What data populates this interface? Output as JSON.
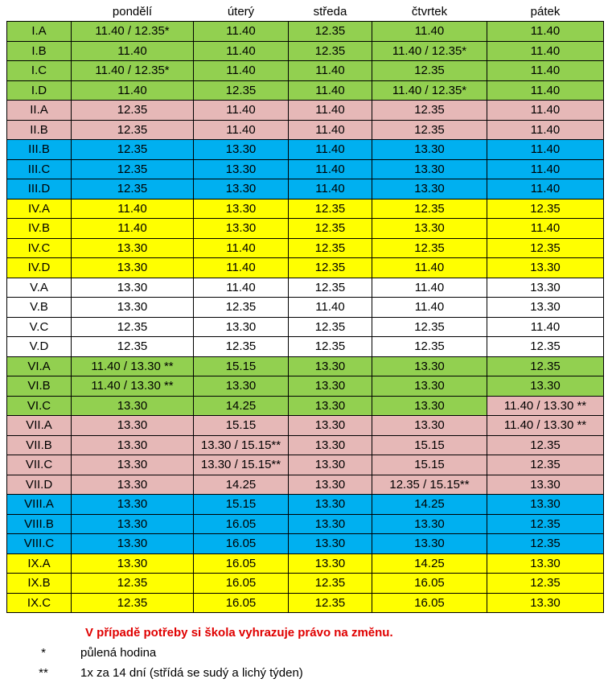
{
  "days": [
    "pondělí",
    "úterý",
    "středa",
    "čtvrtek",
    "pátek"
  ],
  "rows": [
    {
      "cls": "I.A",
      "times": [
        "11.40 / 12.35*",
        "11.40",
        "12.35",
        "11.40",
        "11.40"
      ],
      "color": "#92d050"
    },
    {
      "cls": "I.B",
      "times": [
        "11.40",
        "11.40",
        "12.35",
        "11.40 / 12.35*",
        "11.40"
      ],
      "color": "#92d050"
    },
    {
      "cls": "I.C",
      "times": [
        "11.40 / 12.35*",
        "11.40",
        "11.40",
        "12.35",
        "11.40"
      ],
      "color": "#92d050"
    },
    {
      "cls": "I.D",
      "times": [
        "11.40",
        "12.35",
        "11.40",
        "11.40 / 12.35*",
        "11.40"
      ],
      "color": "#92d050"
    },
    {
      "cls": "II.A",
      "times": [
        "12.35",
        "11.40",
        "11.40",
        "12.35",
        "11.40"
      ],
      "color": "#e6b8b7"
    },
    {
      "cls": "II.B",
      "times": [
        "12.35",
        "11.40",
        "11.40",
        "12.35",
        "11.40"
      ],
      "color": "#e6b8b7"
    },
    {
      "cls": "III.B",
      "times": [
        "12.35",
        "13.30",
        "11.40",
        "13.30",
        "11.40"
      ],
      "color": "#00b0f0"
    },
    {
      "cls": "III.C",
      "times": [
        "12.35",
        "13.30",
        "11.40",
        "13.30",
        "11.40"
      ],
      "color": "#00b0f0"
    },
    {
      "cls": "III.D",
      "times": [
        "12.35",
        "13.30",
        "11.40",
        "13.30",
        "11.40"
      ],
      "color": "#00b0f0"
    },
    {
      "cls": "IV.A",
      "times": [
        "11.40",
        "13.30",
        "12.35",
        "12.35",
        "12.35"
      ],
      "color": "#ffff00"
    },
    {
      "cls": "IV.B",
      "times": [
        "11.40",
        "13.30",
        "12.35",
        "13.30",
        "11.40"
      ],
      "color": "#ffff00"
    },
    {
      "cls": "IV.C",
      "times": [
        "13.30",
        "11.40",
        "12.35",
        "12.35",
        "12.35"
      ],
      "color": "#ffff00"
    },
    {
      "cls": "IV.D",
      "times": [
        "13.30",
        "11.40",
        "12.35",
        "11.40",
        "13.30"
      ],
      "color": "#ffff00"
    },
    {
      "cls": "V.A",
      "times": [
        "13.30",
        "11.40",
        "12.35",
        "11.40",
        "13.30"
      ],
      "color": "#ffffff"
    },
    {
      "cls": "V.B",
      "times": [
        "13.30",
        "12.35",
        "11.40",
        "11.40",
        "13.30"
      ],
      "color": "#ffffff"
    },
    {
      "cls": "V.C",
      "times": [
        "12.35",
        "13.30",
        "12.35",
        "12.35",
        "11.40"
      ],
      "color": "#ffffff"
    },
    {
      "cls": "V.D",
      "times": [
        "12.35",
        "12.35",
        "12.35",
        "12.35",
        "12.35"
      ],
      "color": "#ffffff"
    },
    {
      "cls": "VI.A",
      "times": [
        "11.40 / 13.30 **",
        "15.15",
        "13.30",
        "13.30",
        "12.35"
      ],
      "color": "#92d050"
    },
    {
      "cls": "VI.B",
      "times": [
        "11.40 / 13.30 **",
        "13.30",
        "13.30",
        "13.30",
        "13.30"
      ],
      "color": "#92d050"
    },
    {
      "cls": "VI.C",
      "times": [
        "13.30",
        "14.25",
        "13.30",
        "13.30",
        "11.40 / 13.30 **"
      ],
      "color": "#92d050",
      "last_color": "#e6b8b7"
    },
    {
      "cls": "VII.A",
      "times": [
        "13.30",
        "15.15",
        "13.30",
        "13.30",
        "11.40 / 13.30 **"
      ],
      "color": "#e6b8b7"
    },
    {
      "cls": "VII.B",
      "times": [
        "13.30",
        "13.30 / 15.15**",
        "13.30",
        "15.15",
        "12.35"
      ],
      "color": "#e6b8b7"
    },
    {
      "cls": "VII.C",
      "times": [
        "13.30",
        "13.30 / 15.15**",
        "13.30",
        "15.15",
        "12.35"
      ],
      "color": "#e6b8b7"
    },
    {
      "cls": "VII.D",
      "times": [
        "13.30",
        "14.25",
        "13.30",
        "12.35 / 15.15**",
        "13.30"
      ],
      "color": "#e6b8b7"
    },
    {
      "cls": "VIII.A",
      "times": [
        "13.30",
        "15.15",
        "13.30",
        "14.25",
        "13.30"
      ],
      "color": "#00b0f0"
    },
    {
      "cls": "VIII.B",
      "times": [
        "13.30",
        "16.05",
        "13.30",
        "13.30",
        "12.35"
      ],
      "color": "#00b0f0"
    },
    {
      "cls": "VIII.C",
      "times": [
        "13.30",
        "16.05",
        "13.30",
        "13.30",
        "12.35"
      ],
      "color": "#00b0f0"
    },
    {
      "cls": "IX.A",
      "times": [
        "13.30",
        "16.05",
        "13.30",
        "14.25",
        "13.30"
      ],
      "color": "#ffff00"
    },
    {
      "cls": "IX.B",
      "times": [
        "12.35",
        "16.05",
        "12.35",
        "16.05",
        "12.35"
      ],
      "color": "#ffff00"
    },
    {
      "cls": "IX.C",
      "times": [
        "12.35",
        "16.05",
        "12.35",
        "16.05",
        "13.30"
      ],
      "color": "#ffff00"
    }
  ],
  "notice": "V případě potřeby si škola vyhrazuje právo na změnu.",
  "notice_color": "#e00000",
  "legend": [
    {
      "symbol": "*",
      "text": "půlená hodina"
    },
    {
      "symbol": "**",
      "text": "1x za 14 dní (střídá se sudý a lichý týden)"
    }
  ]
}
